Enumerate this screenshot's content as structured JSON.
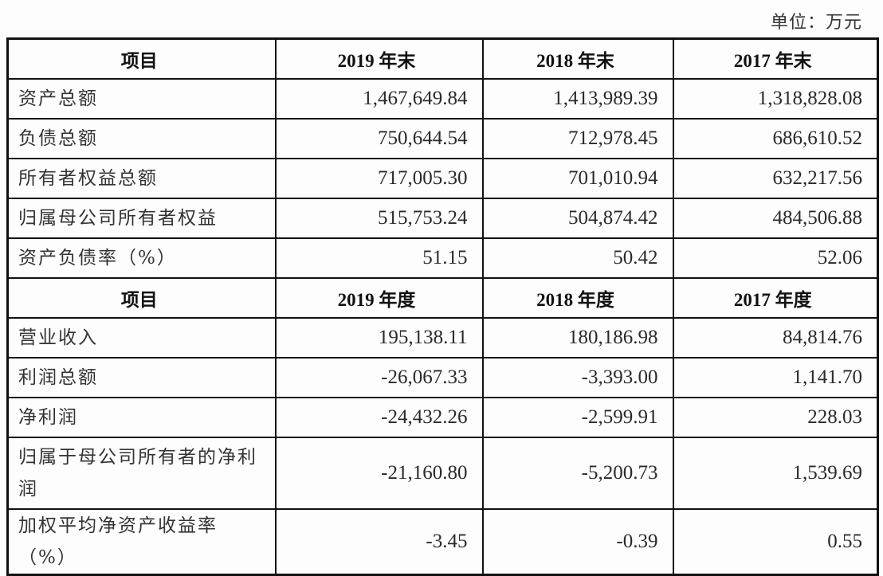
{
  "unit_label": "单位：万元",
  "balance_section": {
    "header": [
      "项目",
      "2019 年末",
      "2018 年末",
      "2017 年末"
    ],
    "rows": [
      {
        "label": "资产总额",
        "values": [
          "1,467,649.84",
          "1,413,989.39",
          "1,318,828.08"
        ]
      },
      {
        "label": "负债总额",
        "values": [
          "750,644.54",
          "712,978.45",
          "686,610.52"
        ]
      },
      {
        "label": "所有者权益总额",
        "values": [
          "717,005.30",
          "701,010.94",
          "632,217.56"
        ]
      },
      {
        "label": "归属母公司所有者权益",
        "values": [
          "515,753.24",
          "504,874.42",
          "484,506.88"
        ]
      },
      {
        "label": "资产负债率（%）",
        "values": [
          "51.15",
          "50.42",
          "52.06"
        ]
      }
    ]
  },
  "income_section": {
    "header": [
      "项目",
      "2019 年度",
      "2018 年度",
      "2017 年度"
    ],
    "rows": [
      {
        "label": "营业收入",
        "values": [
          "195,138.11",
          "180,186.98",
          "84,814.76"
        ]
      },
      {
        "label": "利润总额",
        "values": [
          "-26,067.33",
          "-3,393.00",
          "1,141.70"
        ]
      },
      {
        "label": "净利润",
        "values": [
          "-24,432.26",
          "-2,599.91",
          "228.03"
        ]
      },
      {
        "label": "归属于母公司所有者的净利润",
        "values": [
          "-21,160.80",
          "-5,200.73",
          "1,539.69"
        ]
      },
      {
        "label": "加权平均净资产收益率（%）",
        "values": [
          "-3.45",
          "-0.39",
          "0.55"
        ]
      }
    ]
  }
}
